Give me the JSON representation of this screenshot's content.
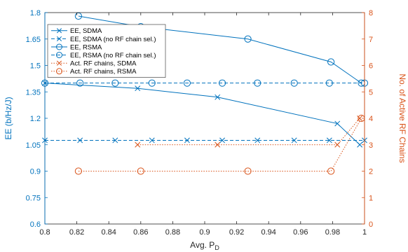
{
  "chart_data": {
    "type": "line",
    "xlabel": "Avg. P",
    "xlabel_sub": "D",
    "ylabel_left": "EE (b/Hz/J)",
    "ylabel_right": "No. of Active RF Chains",
    "xlim": [
      0.8,
      1.0
    ],
    "ylim_left": [
      0.6,
      1.8
    ],
    "ylim_right": [
      0,
      8
    ],
    "x_ticks": [
      "0.8",
      "0.82",
      "0.84",
      "0.86",
      "0.88",
      "0.9",
      "0.92",
      "0.94",
      "0.96",
      "0.98",
      "1"
    ],
    "x_tick_values": [
      0.8,
      0.82,
      0.84,
      0.86,
      0.88,
      0.9,
      0.92,
      0.94,
      0.96,
      0.98,
      1.0
    ],
    "y_left_ticks": [
      "0.6",
      "0.75",
      "0.9",
      "1.05",
      "1.2",
      "1.35",
      "1.5",
      "1.65",
      "1.8"
    ],
    "y_left_tick_values": [
      0.6,
      0.75,
      0.9,
      1.05,
      1.2,
      1.35,
      1.5,
      1.65,
      1.8
    ],
    "y_right_ticks": [
      "0",
      "1",
      "2",
      "3",
      "4",
      "5",
      "6",
      "7",
      "8"
    ],
    "y_right_tick_values": [
      0,
      1,
      2,
      3,
      4,
      5,
      6,
      7,
      8
    ],
    "grid": false,
    "legend_position": "top-left",
    "colors": {
      "blue": "#0072BD",
      "orange": "#D95319",
      "axis": "#262626"
    },
    "series": [
      {
        "name": "EE, SDMA",
        "axis": "left",
        "color": "#0072BD",
        "line": "solid",
        "marker": "x",
        "x": [
          0.8,
          0.858,
          0.908,
          0.983,
          0.997
        ],
        "y": [
          1.4,
          1.37,
          1.32,
          1.17,
          1.05
        ]
      },
      {
        "name": "EE, SDMA (no RF chain sel.)",
        "axis": "left",
        "color": "#0072BD",
        "line": "dashed",
        "marker": "x",
        "x": [
          0.8,
          0.822,
          0.844,
          0.867,
          0.889,
          0.911,
          0.933,
          0.956,
          0.978,
          1.0
        ],
        "y": [
          1.075,
          1.075,
          1.075,
          1.075,
          1.075,
          1.075,
          1.075,
          1.075,
          1.075,
          1.075
        ]
      },
      {
        "name": "EE, RSMA",
        "axis": "left",
        "color": "#0072BD",
        "line": "solid",
        "marker": "o",
        "x": [
          0.821,
          0.86,
          0.927,
          0.979,
          0.998
        ],
        "y": [
          1.78,
          1.72,
          1.65,
          1.52,
          1.4
        ]
      },
      {
        "name": "EE, RSMA (no RF chain sel.)",
        "axis": "left",
        "color": "#0072BD",
        "line": "dashed",
        "marker": "o",
        "x": [
          0.8,
          0.822,
          0.844,
          0.867,
          0.889,
          0.911,
          0.933,
          0.956,
          0.978,
          1.0
        ],
        "y": [
          1.4,
          1.4,
          1.4,
          1.4,
          1.4,
          1.4,
          1.4,
          1.4,
          1.4,
          1.4
        ]
      },
      {
        "name": "Act. RF chains, SDMA",
        "axis": "right",
        "color": "#D95319",
        "line": "dotted",
        "marker": "x",
        "x": [
          0.858,
          0.908,
          0.983,
          0.997
        ],
        "y": [
          3,
          3,
          3,
          4
        ]
      },
      {
        "name": "Act. RF chains, RSMA",
        "axis": "right",
        "color": "#D95319",
        "line": "dotted",
        "marker": "o",
        "x": [
          0.821,
          0.86,
          0.927,
          0.979,
          0.998
        ],
        "y": [
          2,
          2,
          2,
          2,
          4
        ]
      }
    ]
  }
}
